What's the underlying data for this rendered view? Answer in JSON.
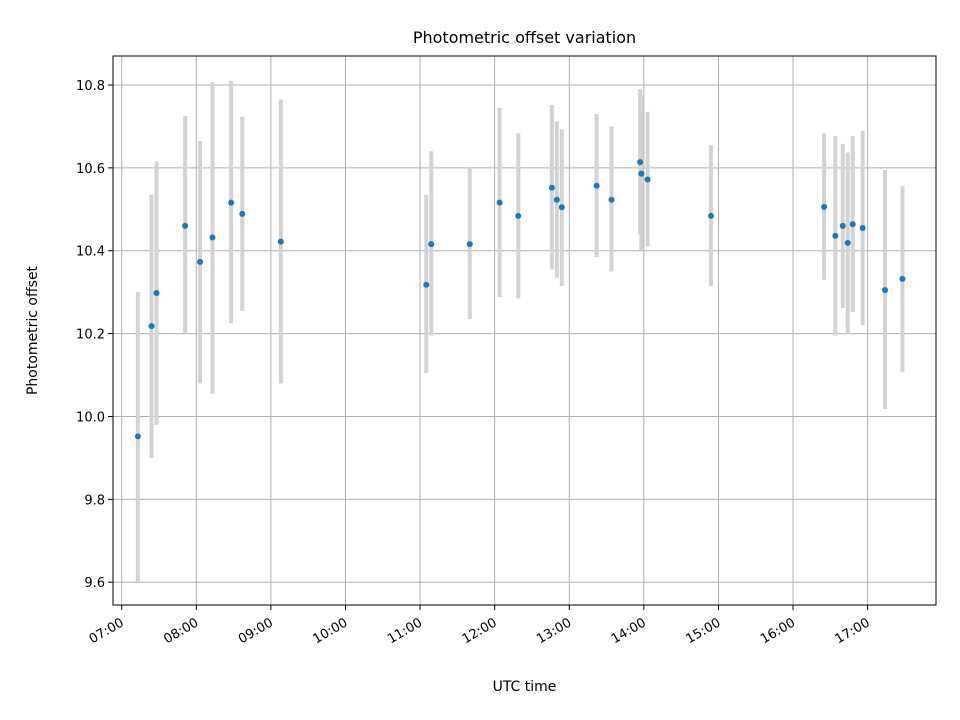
{
  "chart_data": {
    "type": "scatter",
    "title": "Photometric offset variation",
    "xlabel": "UTC time",
    "ylabel": "Photometric offset",
    "grid": true,
    "point_color": "#1f77b4",
    "errorbar_color": "#d3d3d3",
    "xlim": [
      "06:53",
      "17:55"
    ],
    "ylim": [
      9.545,
      10.87
    ],
    "x_ticks": [
      "07:00",
      "08:00",
      "09:00",
      "10:00",
      "11:00",
      "12:00",
      "13:00",
      "14:00",
      "15:00",
      "16:00",
      "17:00"
    ],
    "y_ticks": [
      "9.6",
      "9.8",
      "10.0",
      "10.2",
      "10.4",
      "10.6",
      "10.8"
    ],
    "points": [
      {
        "x": "07:13",
        "y": 9.952,
        "ylow": 9.6,
        "yhigh": 10.3
      },
      {
        "x": "07:24",
        "y": 10.218,
        "ylow": 9.9,
        "yhigh": 10.535
      },
      {
        "x": "07:28",
        "y": 10.298,
        "ylow": 9.98,
        "yhigh": 10.615
      },
      {
        "x": "07:51",
        "y": 10.46,
        "ylow": 10.2,
        "yhigh": 10.725
      },
      {
        "x": "08:03",
        "y": 10.373,
        "ylow": 10.08,
        "yhigh": 10.665
      },
      {
        "x": "08:13",
        "y": 10.432,
        "ylow": 10.055,
        "yhigh": 10.807
      },
      {
        "x": "08:28",
        "y": 10.516,
        "ylow": 10.225,
        "yhigh": 10.81
      },
      {
        "x": "08:37",
        "y": 10.489,
        "ylow": 10.255,
        "yhigh": 10.723
      },
      {
        "x": "09:08",
        "y": 10.422,
        "ylow": 10.08,
        "yhigh": 10.765
      },
      {
        "x": "11:05",
        "y": 10.318,
        "ylow": 10.105,
        "yhigh": 10.535
      },
      {
        "x": "11:09",
        "y": 10.416,
        "ylow": 10.195,
        "yhigh": 10.64
      },
      {
        "x": "11:40",
        "y": 10.416,
        "ylow": 10.235,
        "yhigh": 10.6
      },
      {
        "x": "12:04",
        "y": 10.516,
        "ylow": 10.288,
        "yhigh": 10.745
      },
      {
        "x": "12:19",
        "y": 10.484,
        "ylow": 10.285,
        "yhigh": 10.683
      },
      {
        "x": "12:46",
        "y": 10.552,
        "ylow": 10.355,
        "yhigh": 10.752
      },
      {
        "x": "12:50",
        "y": 10.523,
        "ylow": 10.335,
        "yhigh": 10.712
      },
      {
        "x": "12:54",
        "y": 10.505,
        "ylow": 10.315,
        "yhigh": 10.693
      },
      {
        "x": "13:22",
        "y": 10.557,
        "ylow": 10.385,
        "yhigh": 10.73
      },
      {
        "x": "13:34",
        "y": 10.523,
        "ylow": 10.35,
        "yhigh": 10.7
      },
      {
        "x": "13:57",
        "y": 10.614,
        "ylow": 10.44,
        "yhigh": 10.79
      },
      {
        "x": "13:58",
        "y": 10.586,
        "ylow": 10.4,
        "yhigh": 10.775
      },
      {
        "x": "14:03",
        "y": 10.572,
        "ylow": 10.41,
        "yhigh": 10.735
      },
      {
        "x": "14:54",
        "y": 10.484,
        "ylow": 10.315,
        "yhigh": 10.655
      },
      {
        "x": "16:25",
        "y": 10.506,
        "ylow": 10.33,
        "yhigh": 10.683
      },
      {
        "x": "16:34",
        "y": 10.436,
        "ylow": 10.195,
        "yhigh": 10.677
      },
      {
        "x": "16:40",
        "y": 10.46,
        "ylow": 10.262,
        "yhigh": 10.658
      },
      {
        "x": "16:44",
        "y": 10.419,
        "ylow": 10.2,
        "yhigh": 10.637
      },
      {
        "x": "16:48",
        "y": 10.464,
        "ylow": 10.252,
        "yhigh": 10.677
      },
      {
        "x": "16:56",
        "y": 10.455,
        "ylow": 10.22,
        "yhigh": 10.69
      },
      {
        "x": "17:14",
        "y": 10.305,
        "ylow": 10.018,
        "yhigh": 10.595
      },
      {
        "x": "17:28",
        "y": 10.332,
        "ylow": 10.108,
        "yhigh": 10.557
      }
    ]
  }
}
